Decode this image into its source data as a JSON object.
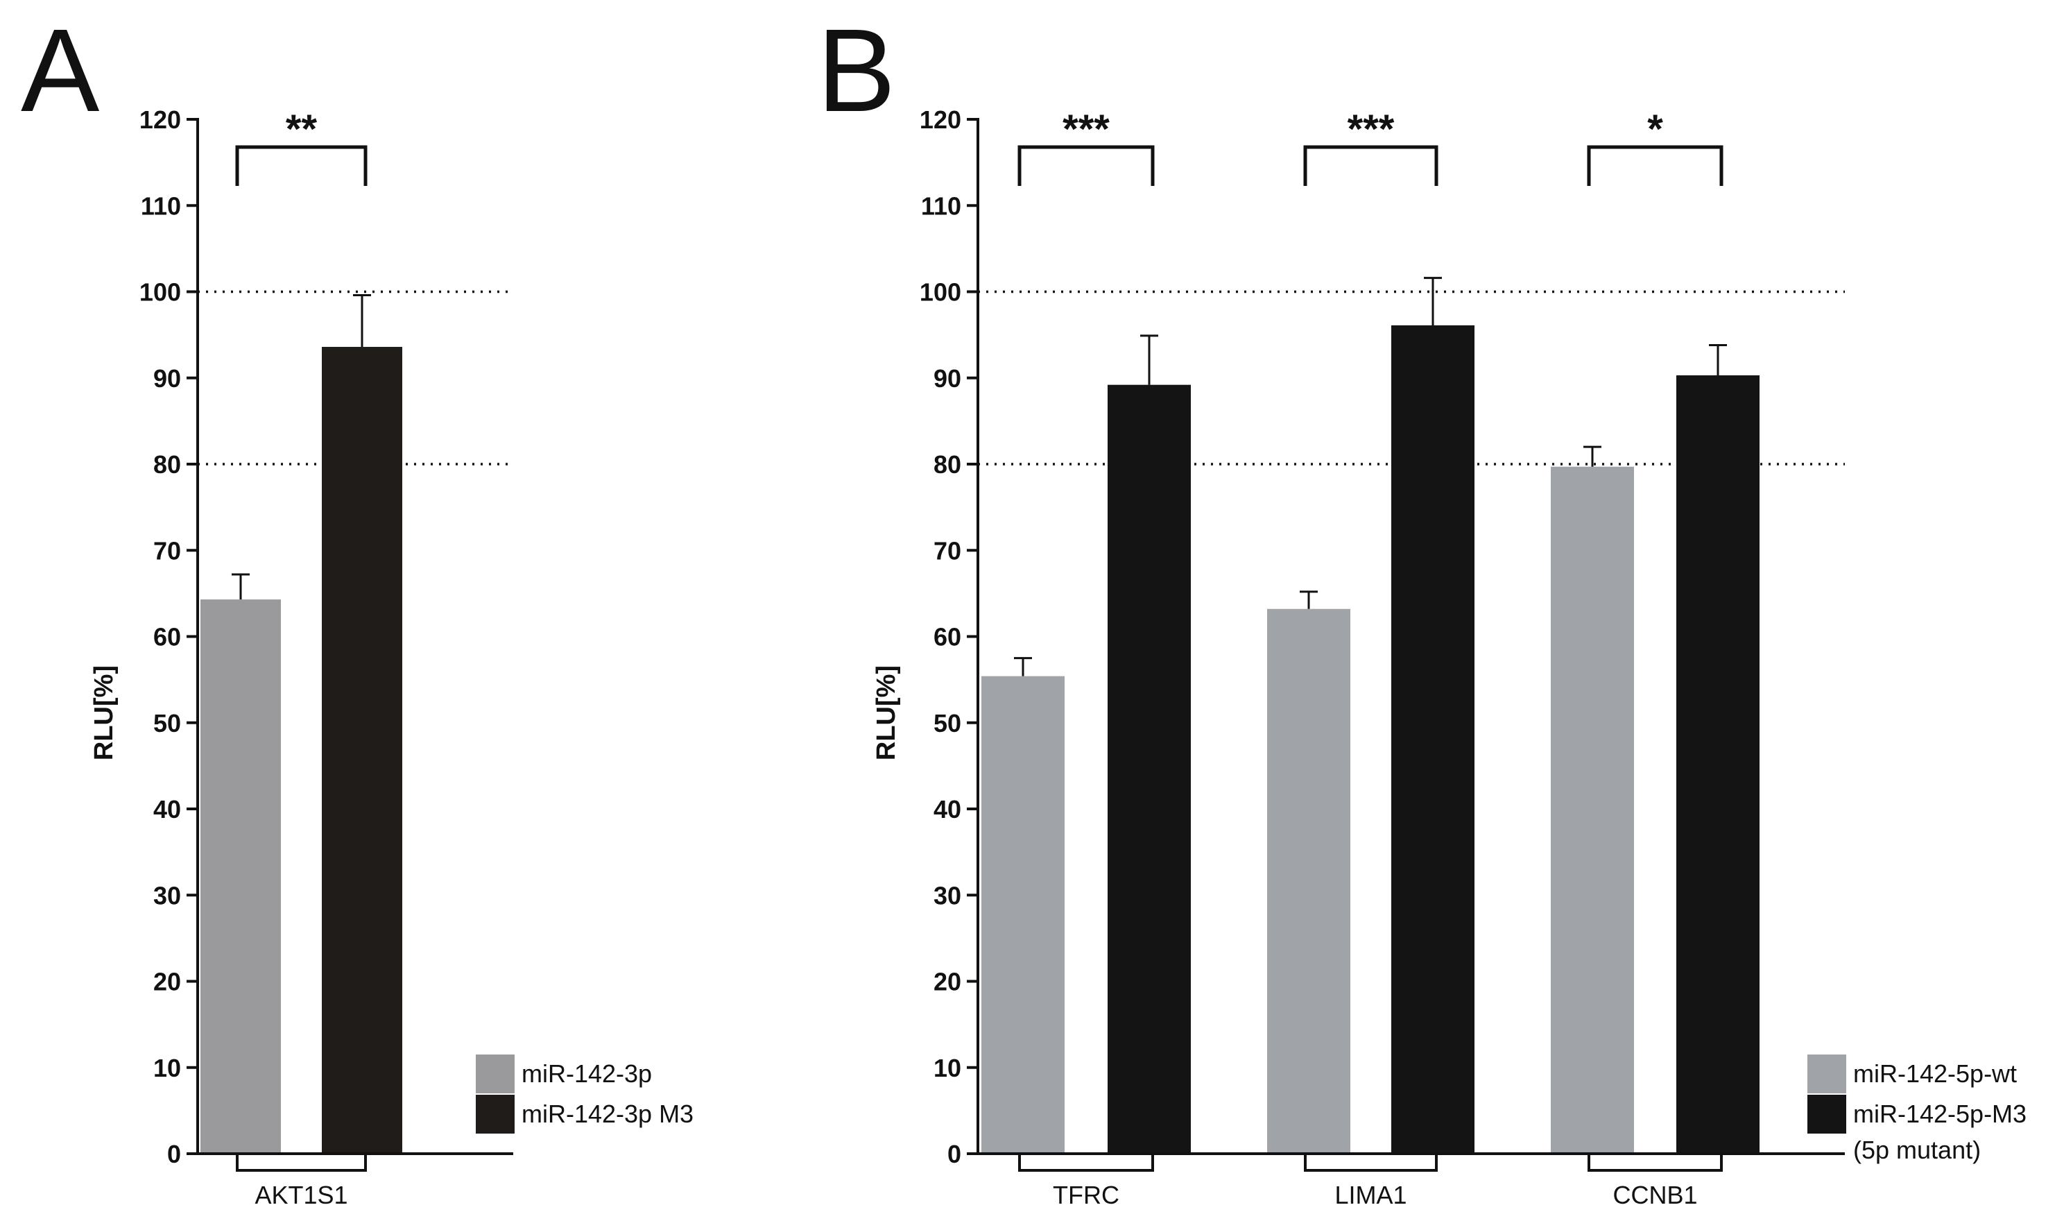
{
  "figure": {
    "panels": [
      {
        "letter": "A",
        "chart_data": {
          "type": "bar",
          "title": "",
          "xlabel": "",
          "ylabel": "RLU[%]",
          "ylim": [
            0,
            120
          ],
          "yticks": [
            0,
            10,
            20,
            30,
            40,
            50,
            60,
            70,
            80,
            90,
            100,
            110,
            120
          ],
          "reference_lines": [
            80,
            100
          ],
          "categories": [
            "AKT1S1"
          ],
          "series": [
            {
              "name": "miR-142-3p",
              "color": "#9a999b",
              "values": [
                64.3
              ],
              "errors": [
                2.9
              ]
            },
            {
              "name": "miR-142-3p M3",
              "color": "#1f1c19",
              "values": [
                93.6
              ],
              "errors": [
                6.0
              ]
            }
          ],
          "significance": [
            "**"
          ],
          "legend_position": "bottom-right"
        }
      },
      {
        "letter": "B",
        "chart_data": {
          "type": "bar",
          "title": "",
          "xlabel": "",
          "ylabel": "RLU[%]",
          "ylim": [
            0,
            120
          ],
          "yticks": [
            0,
            10,
            20,
            30,
            40,
            50,
            60,
            70,
            80,
            90,
            100,
            110,
            120
          ],
          "reference_lines": [
            80,
            100
          ],
          "categories": [
            "TFRC",
            "LIMA1",
            "CCNB1"
          ],
          "series": [
            {
              "name": "miR-142-5p-wt",
              "color": "#a0a3a8",
              "values": [
                55.4,
                63.2,
                79.7
              ],
              "errors": [
                2.1,
                2.0,
                2.3
              ]
            },
            {
              "name": "miR-142-5p-M3",
              "name_line2": "(5p mutant)",
              "color": "#141414",
              "values": [
                89.2,
                96.1,
                90.3
              ],
              "errors": [
                5.7,
                5.5,
                3.5
              ]
            }
          ],
          "significance": [
            "***",
            "***",
            "*"
          ],
          "legend_position": "bottom-right"
        }
      }
    ]
  }
}
